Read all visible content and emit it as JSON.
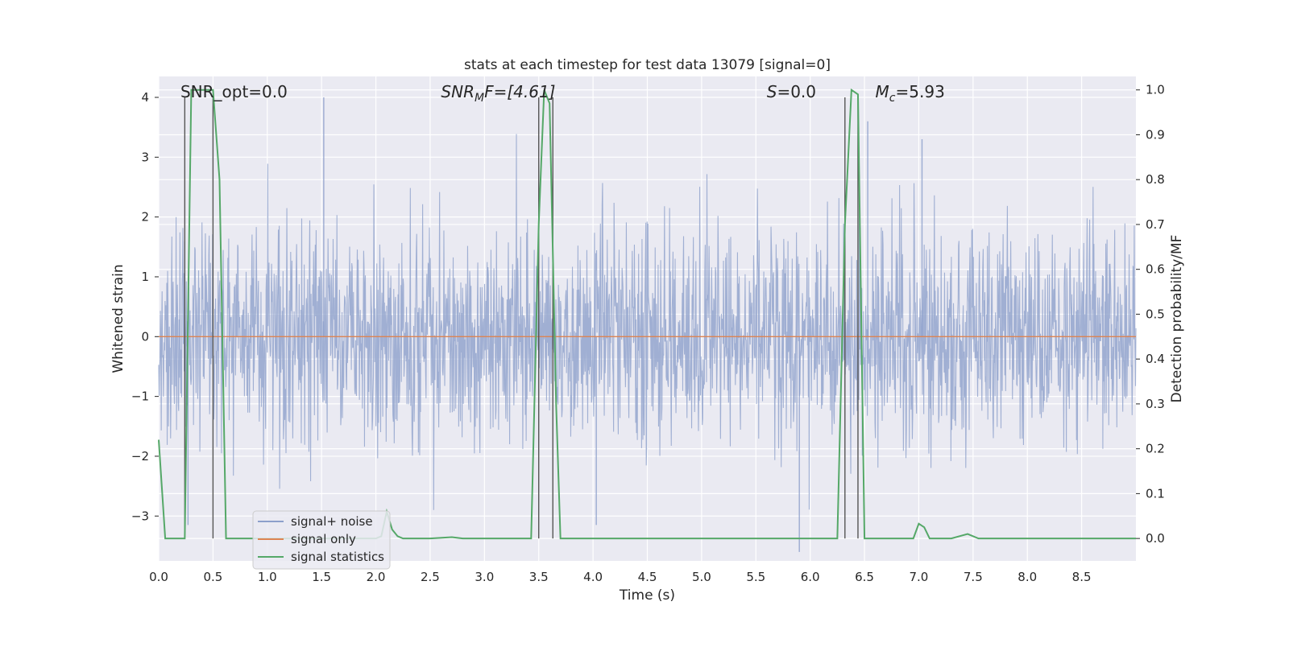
{
  "chart_data": {
    "type": "line",
    "title": "stats at each timestep for test data 13079 [signal=0]",
    "xlabel": "Time (s)",
    "ylabel_left": "Whitened strain",
    "ylabel_right": "Detection probability/MF",
    "xlim": [
      0,
      9.0
    ],
    "ylim_left": [
      -3.75,
      4.35
    ],
    "ylim_right": [
      -0.05,
      1.03
    ],
    "xticks": [
      0.0,
      0.5,
      1.0,
      1.5,
      2.0,
      2.5,
      3.0,
      3.5,
      4.0,
      4.5,
      5.0,
      5.5,
      6.0,
      6.5,
      7.0,
      7.5,
      8.0,
      8.5
    ],
    "xtick_labels": [
      "0.0",
      "0.5",
      "1.0",
      "1.5",
      "2.0",
      "2.5",
      "3.0",
      "3.5",
      "4.0",
      "4.5",
      "5.0",
      "5.5",
      "6.0",
      "6.5",
      "7.0",
      "7.5",
      "8.0",
      "8.5"
    ],
    "yticks_left": [
      -3,
      -2,
      -1,
      0,
      1,
      2,
      3,
      4
    ],
    "ytick_labels_left": [
      "−3",
      "−2",
      "−1",
      "0",
      "1",
      "2",
      "3",
      "4"
    ],
    "yticks_right": [
      0.0,
      0.1,
      0.2,
      0.3,
      0.4,
      0.5,
      0.6,
      0.7,
      0.8,
      0.9,
      1.0
    ],
    "ytick_labels_right": [
      "0.0",
      "0.1",
      "0.2",
      "0.3",
      "0.4",
      "0.5",
      "0.6",
      "0.7",
      "0.8",
      "0.9",
      "1.0"
    ],
    "grid": true,
    "legend_placement": "lower-left",
    "annotations": {
      "snr_opt": "SNR_opt=0.0",
      "snr_mf_sym": "SNR",
      "snr_mf_sub": "M",
      "snr_mf_rest": "F=[4.61]",
      "s_sym": "S",
      "s_rest": "=0.0",
      "mc_sym": "M",
      "mc_sub": "c",
      "mc_rest": "=5.93"
    },
    "vertical_markers": [
      0.24,
      0.5,
      3.5,
      3.63,
      6.32,
      6.44
    ],
    "series": [
      {
        "name": "signal+ noise",
        "color": "#8da0cb",
        "kind": "noise",
        "sample_count": 2304,
        "envelope": [
          -3.1,
          4.0
        ],
        "spikes": [
          [
            1.52,
            4.0
          ],
          [
            0.27,
            -3.15
          ],
          [
            4.03,
            -3.15
          ],
          [
            5.9,
            -3.6
          ],
          [
            6.53,
            3.6
          ],
          [
            7.03,
            3.3
          ]
        ]
      },
      {
        "name": "signal only",
        "color": "#dd8452",
        "x": [
          0,
          9.0
        ],
        "y": [
          0,
          0
        ]
      },
      {
        "name": "signal statistics",
        "color": "#55a868",
        "axis": "right",
        "x": [
          0.0,
          0.06,
          0.24,
          0.3,
          0.5,
          0.56,
          0.62,
          1.0,
          1.5,
          1.9,
          2.0,
          2.05,
          2.1,
          2.15,
          2.2,
          2.25,
          2.5,
          2.7,
          2.8,
          2.9,
          3.2,
          3.43,
          3.5,
          3.55,
          3.6,
          3.66,
          3.7,
          3.75,
          4.5,
          5.0,
          5.5,
          6.0,
          6.25,
          6.32,
          6.38,
          6.44,
          6.5,
          6.56,
          6.7,
          6.95,
          7.0,
          7.05,
          7.1,
          7.3,
          7.45,
          7.55,
          8.0,
          9.0
        ],
        "y": [
          0.22,
          0.0,
          0.0,
          1.0,
          1.0,
          0.8,
          0.0,
          0.0,
          0.0,
          0.0,
          0.0,
          0.005,
          0.06,
          0.02,
          0.005,
          0.0,
          0.0,
          0.003,
          0.0,
          0.0,
          0.0,
          0.0,
          0.7,
          1.0,
          0.97,
          0.3,
          0.0,
          0.0,
          0.0,
          0.0,
          0.0,
          0.0,
          0.0,
          0.7,
          1.0,
          0.99,
          0.0,
          0.0,
          0.0,
          0.0,
          0.033,
          0.025,
          0.0,
          0.0,
          0.01,
          0.0,
          0.0,
          0.0
        ]
      }
    ]
  }
}
